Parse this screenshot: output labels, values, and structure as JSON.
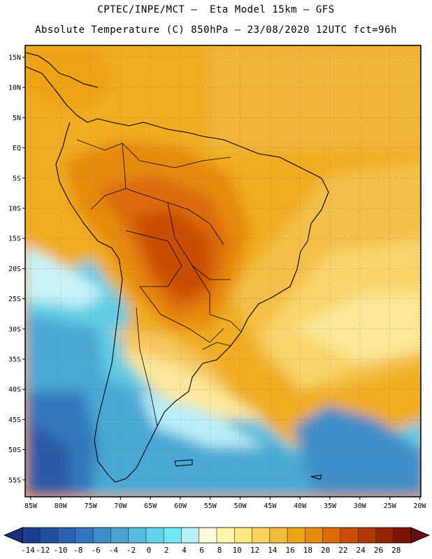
{
  "header": {
    "line1": "CPTEC/INPE/MCT –  Eta Model 15km – GFS",
    "line2": "Absolute Temperature (C) 850hPa – 23/08/2020 12UTC fct=96h"
  },
  "axes": {
    "lat_labels": [
      "15N",
      "10N",
      "5N",
      "EQ",
      "5S",
      "10S",
      "15S",
      "20S",
      "25S",
      "30S",
      "35S",
      "40S",
      "45S",
      "50S",
      "55S"
    ],
    "lon_labels": [
      "85W",
      "80W",
      "75W",
      "70W",
      "65W",
      "60W",
      "55W",
      "50W",
      "45W",
      "40W",
      "35W",
      "30W",
      "25W",
      "20W"
    ]
  },
  "colorbar": {
    "labels": [
      "-14",
      "-12",
      "-10",
      "-8",
      "-6",
      "-4",
      "-2",
      "0",
      "2",
      "4",
      "6",
      "8",
      "10",
      "12",
      "14",
      "16",
      "18",
      "20",
      "22",
      "24",
      "26",
      "28"
    ],
    "colors": [
      "#1c3c8c",
      "#23509e",
      "#2a64b0",
      "#3378bc",
      "#3f8ec8",
      "#4aa3d2",
      "#58bcdc",
      "#64d2ea",
      "#6ee8f4",
      "#b8f0fa",
      "#fff8dc",
      "#fff4a8",
      "#fde682",
      "#f9d25e",
      "#f4bb3a",
      "#eea318",
      "#e68a10",
      "#dc6a08",
      "#cc4e06",
      "#b23804",
      "#962404",
      "#7c1404"
    ],
    "left_arrow_color": "#17307a",
    "right_arrow_color": "#6a0a14"
  }
}
